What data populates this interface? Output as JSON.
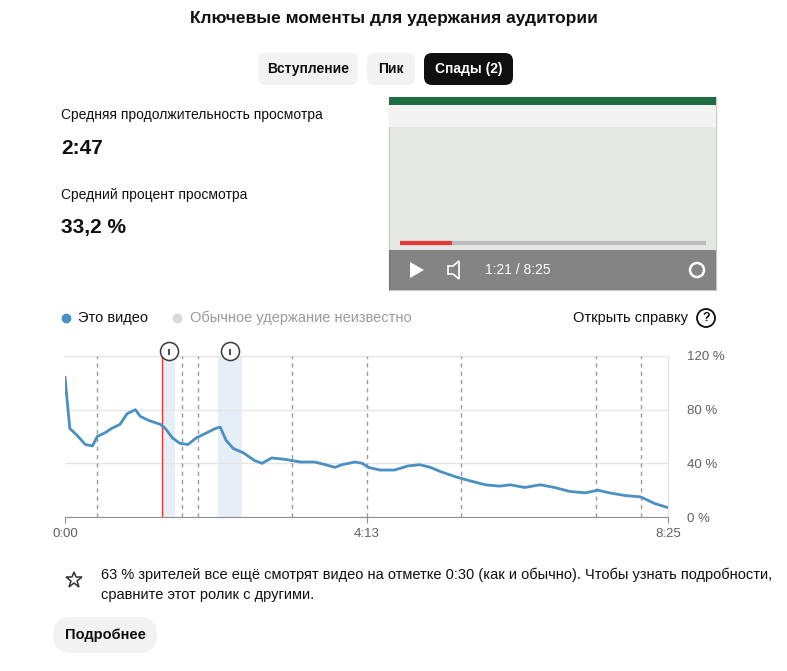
{
  "header": {
    "title": "Ключевые моменты для удержания аудитории"
  },
  "tabs": {
    "items": [
      "Вступление",
      "Пик",
      "Спады (2)"
    ],
    "selected": "Спады (2)"
  },
  "stats": [
    {
      "label": "Средняя продолжительность просмотра",
      "value": "2:47"
    },
    {
      "label": "Средний процент просмотра",
      "value": "33,2 %"
    }
  ],
  "player": {
    "time": "1:21 / 8:25"
  },
  "legend_items": [
    {
      "name": "Это видео",
      "color": "#4a90c2"
    },
    {
      "name": "Обычное удержание неизвестно",
      "color": "#d9d9d9"
    }
  ],
  "help": {
    "label": "Открыть справку",
    "icon": "?"
  },
  "chart_data": {
    "type": "line",
    "x": [
      0,
      4,
      10,
      17,
      23,
      27,
      34,
      39,
      46,
      52,
      59,
      63,
      70,
      80,
      84,
      90,
      96,
      103,
      110,
      117,
      126,
      130,
      135,
      141,
      149,
      159,
      165,
      173,
      184,
      197,
      209,
      218,
      226,
      232,
      243,
      249,
      254,
      264,
      276,
      287,
      297,
      306,
      314,
      327,
      339,
      352,
      364,
      373,
      385,
      398,
      410,
      423,
      436,
      446,
      456,
      469,
      482,
      494,
      505
    ],
    "values": [
      104,
      66,
      61,
      54,
      53,
      60,
      63,
      66,
      69,
      77,
      80,
      75,
      72,
      69,
      66,
      59,
      55,
      54,
      59,
      62,
      66,
      67,
      57,
      51,
      48,
      42,
      40,
      44,
      43,
      41,
      41,
      39,
      37,
      39,
      41,
      40,
      37,
      35,
      35,
      38,
      39,
      37,
      34,
      30,
      27,
      24,
      23,
      24,
      22,
      24,
      22,
      19,
      18,
      20,
      18,
      16,
      15,
      10,
      7
    ],
    "color": "#4a90c2",
    "xlim": [
      0,
      505
    ],
    "ylim": [
      0,
      120
    ],
    "xticks": [
      {
        "value": 0,
        "label": "0:00"
      },
      {
        "value": 253,
        "label": "4:13"
      },
      {
        "value": 505,
        "label": "8:25"
      }
    ],
    "yticks": [
      {
        "value": 0,
        "label": "0 %"
      },
      {
        "value": 40,
        "label": "40 %"
      },
      {
        "value": 80,
        "label": "80 %"
      },
      {
        "value": 120,
        "label": "120 %"
      }
    ],
    "grid": true,
    "current_time": 81,
    "dips": [
      [
        82,
        92
      ],
      [
        128,
        148
      ]
    ],
    "chapters": [
      27,
      98,
      111,
      190,
      253,
      332,
      445,
      482
    ]
  },
  "footer": {
    "insight": "63 % зрителей все ещё смотрят видео на отметке 0:30 (как и обычно). Чтобы узнать подробности, сравните этот ролик с другими.",
    "button": "Подробнее"
  }
}
